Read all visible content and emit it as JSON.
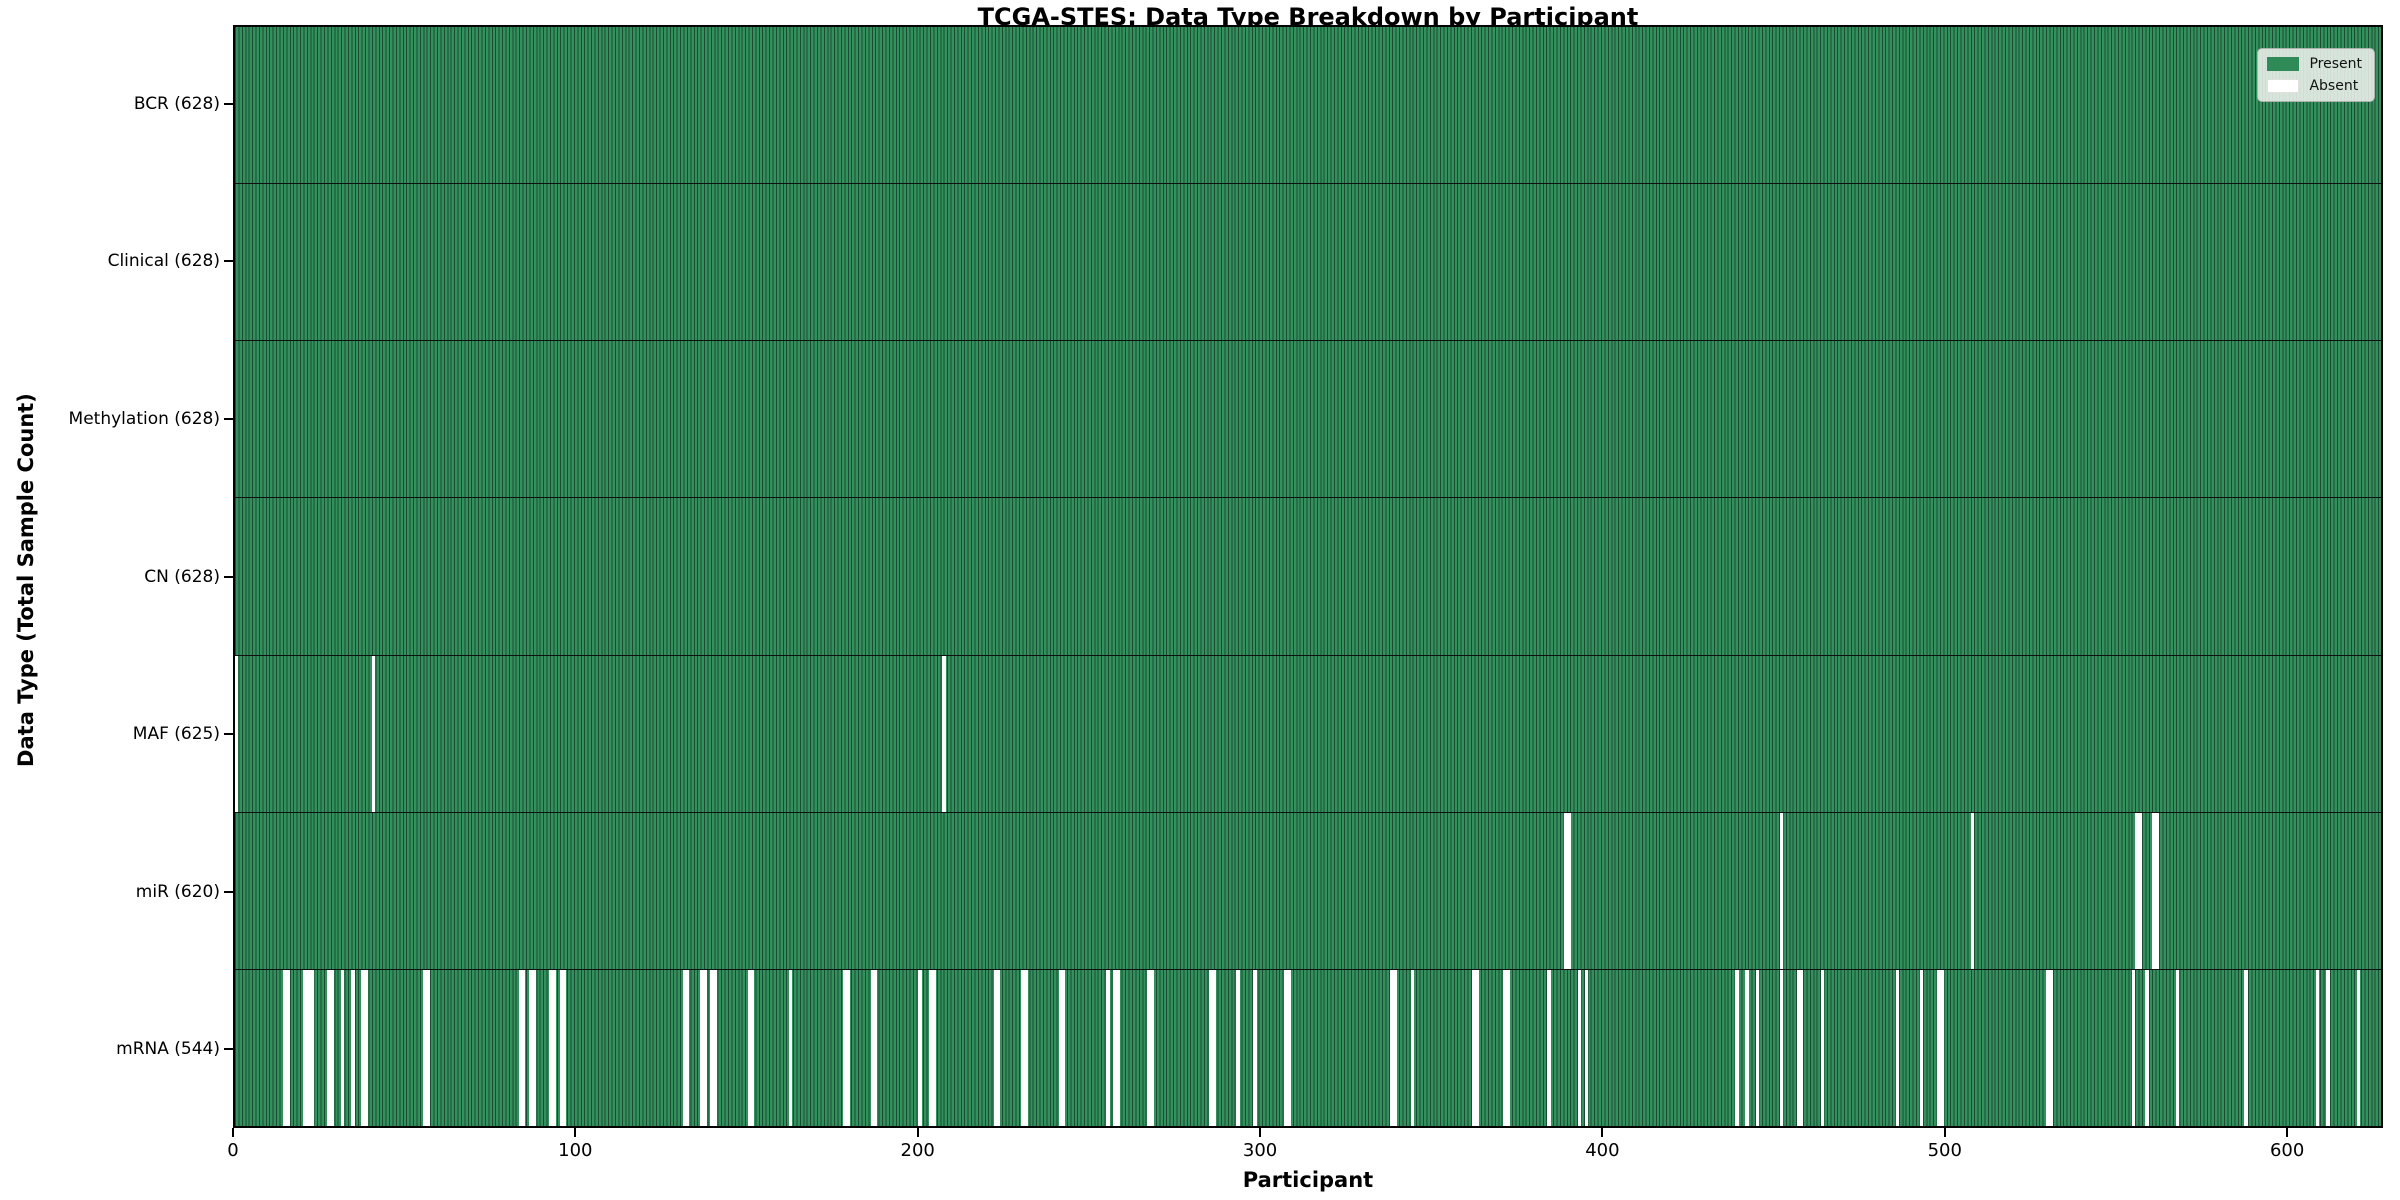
{
  "title": "TCGA-STES: Data Type Breakdown by Participant",
  "axes": {
    "xlabel": "Participant",
    "ylabel": "Data Type (Total Sample Count)"
  },
  "legend": {
    "position": "upper right",
    "entries": [
      {
        "label": "Present",
        "color": "#2e8b57"
      },
      {
        "label": "Absent",
        "color": "#ffffff"
      }
    ]
  },
  "colors": {
    "present": "#2e8b57",
    "absent": "#ffffff",
    "bar_edge": "#1a4e31",
    "row_separator": "#101010"
  },
  "chart_data": {
    "type": "heatmap",
    "title": "TCGA-STES: Data Type Breakdown by Participant",
    "xlabel": "Participant",
    "ylabel": "Data Type (Total Sample Count)",
    "xlim": [
      0,
      628
    ],
    "n_participants": 628,
    "x_ticks": [
      0,
      100,
      200,
      300,
      400,
      500,
      600
    ],
    "grid": false,
    "legend_position": "upper right",
    "rows": [
      {
        "label": "BCR (628)",
        "name": "BCR",
        "present_count": 628,
        "absent": []
      },
      {
        "label": "Clinical (628)",
        "name": "Clinical",
        "present_count": 628,
        "absent": []
      },
      {
        "label": "Methylation (628)",
        "name": "Methylation",
        "present_count": 628,
        "absent": []
      },
      {
        "label": "CN (628)",
        "name": "CN",
        "present_count": 628,
        "absent": []
      },
      {
        "label": "MAF (625)",
        "name": "MAF",
        "present_count": 625,
        "absent": [
          0,
          40,
          207
        ]
      },
      {
        "label": "miR (620)",
        "name": "miR",
        "present_count": 620,
        "absent": [
          389,
          390,
          452,
          508,
          556,
          557,
          561,
          562
        ]
      },
      {
        "label": "mRNA (544)",
        "name": "mRNA",
        "present_count": 544,
        "absent": [
          14,
          15,
          20,
          21,
          22,
          27,
          28,
          31,
          34,
          37,
          38,
          55,
          56,
          83,
          84,
          86,
          87,
          92,
          93,
          95,
          96,
          131,
          132,
          136,
          137,
          139,
          140,
          150,
          151,
          162,
          178,
          179,
          186,
          187,
          200,
          203,
          204,
          222,
          223,
          230,
          231,
          241,
          242,
          255,
          257,
          258,
          267,
          268,
          285,
          286,
          293,
          298,
          307,
          308,
          338,
          339,
          344,
          362,
          363,
          371,
          372,
          384,
          393,
          395,
          439,
          442,
          445,
          452,
          457,
          458,
          464,
          486,
          493,
          498,
          499,
          530,
          531,
          555,
          559,
          568,
          588,
          609,
          612,
          621
        ]
      }
    ]
  }
}
